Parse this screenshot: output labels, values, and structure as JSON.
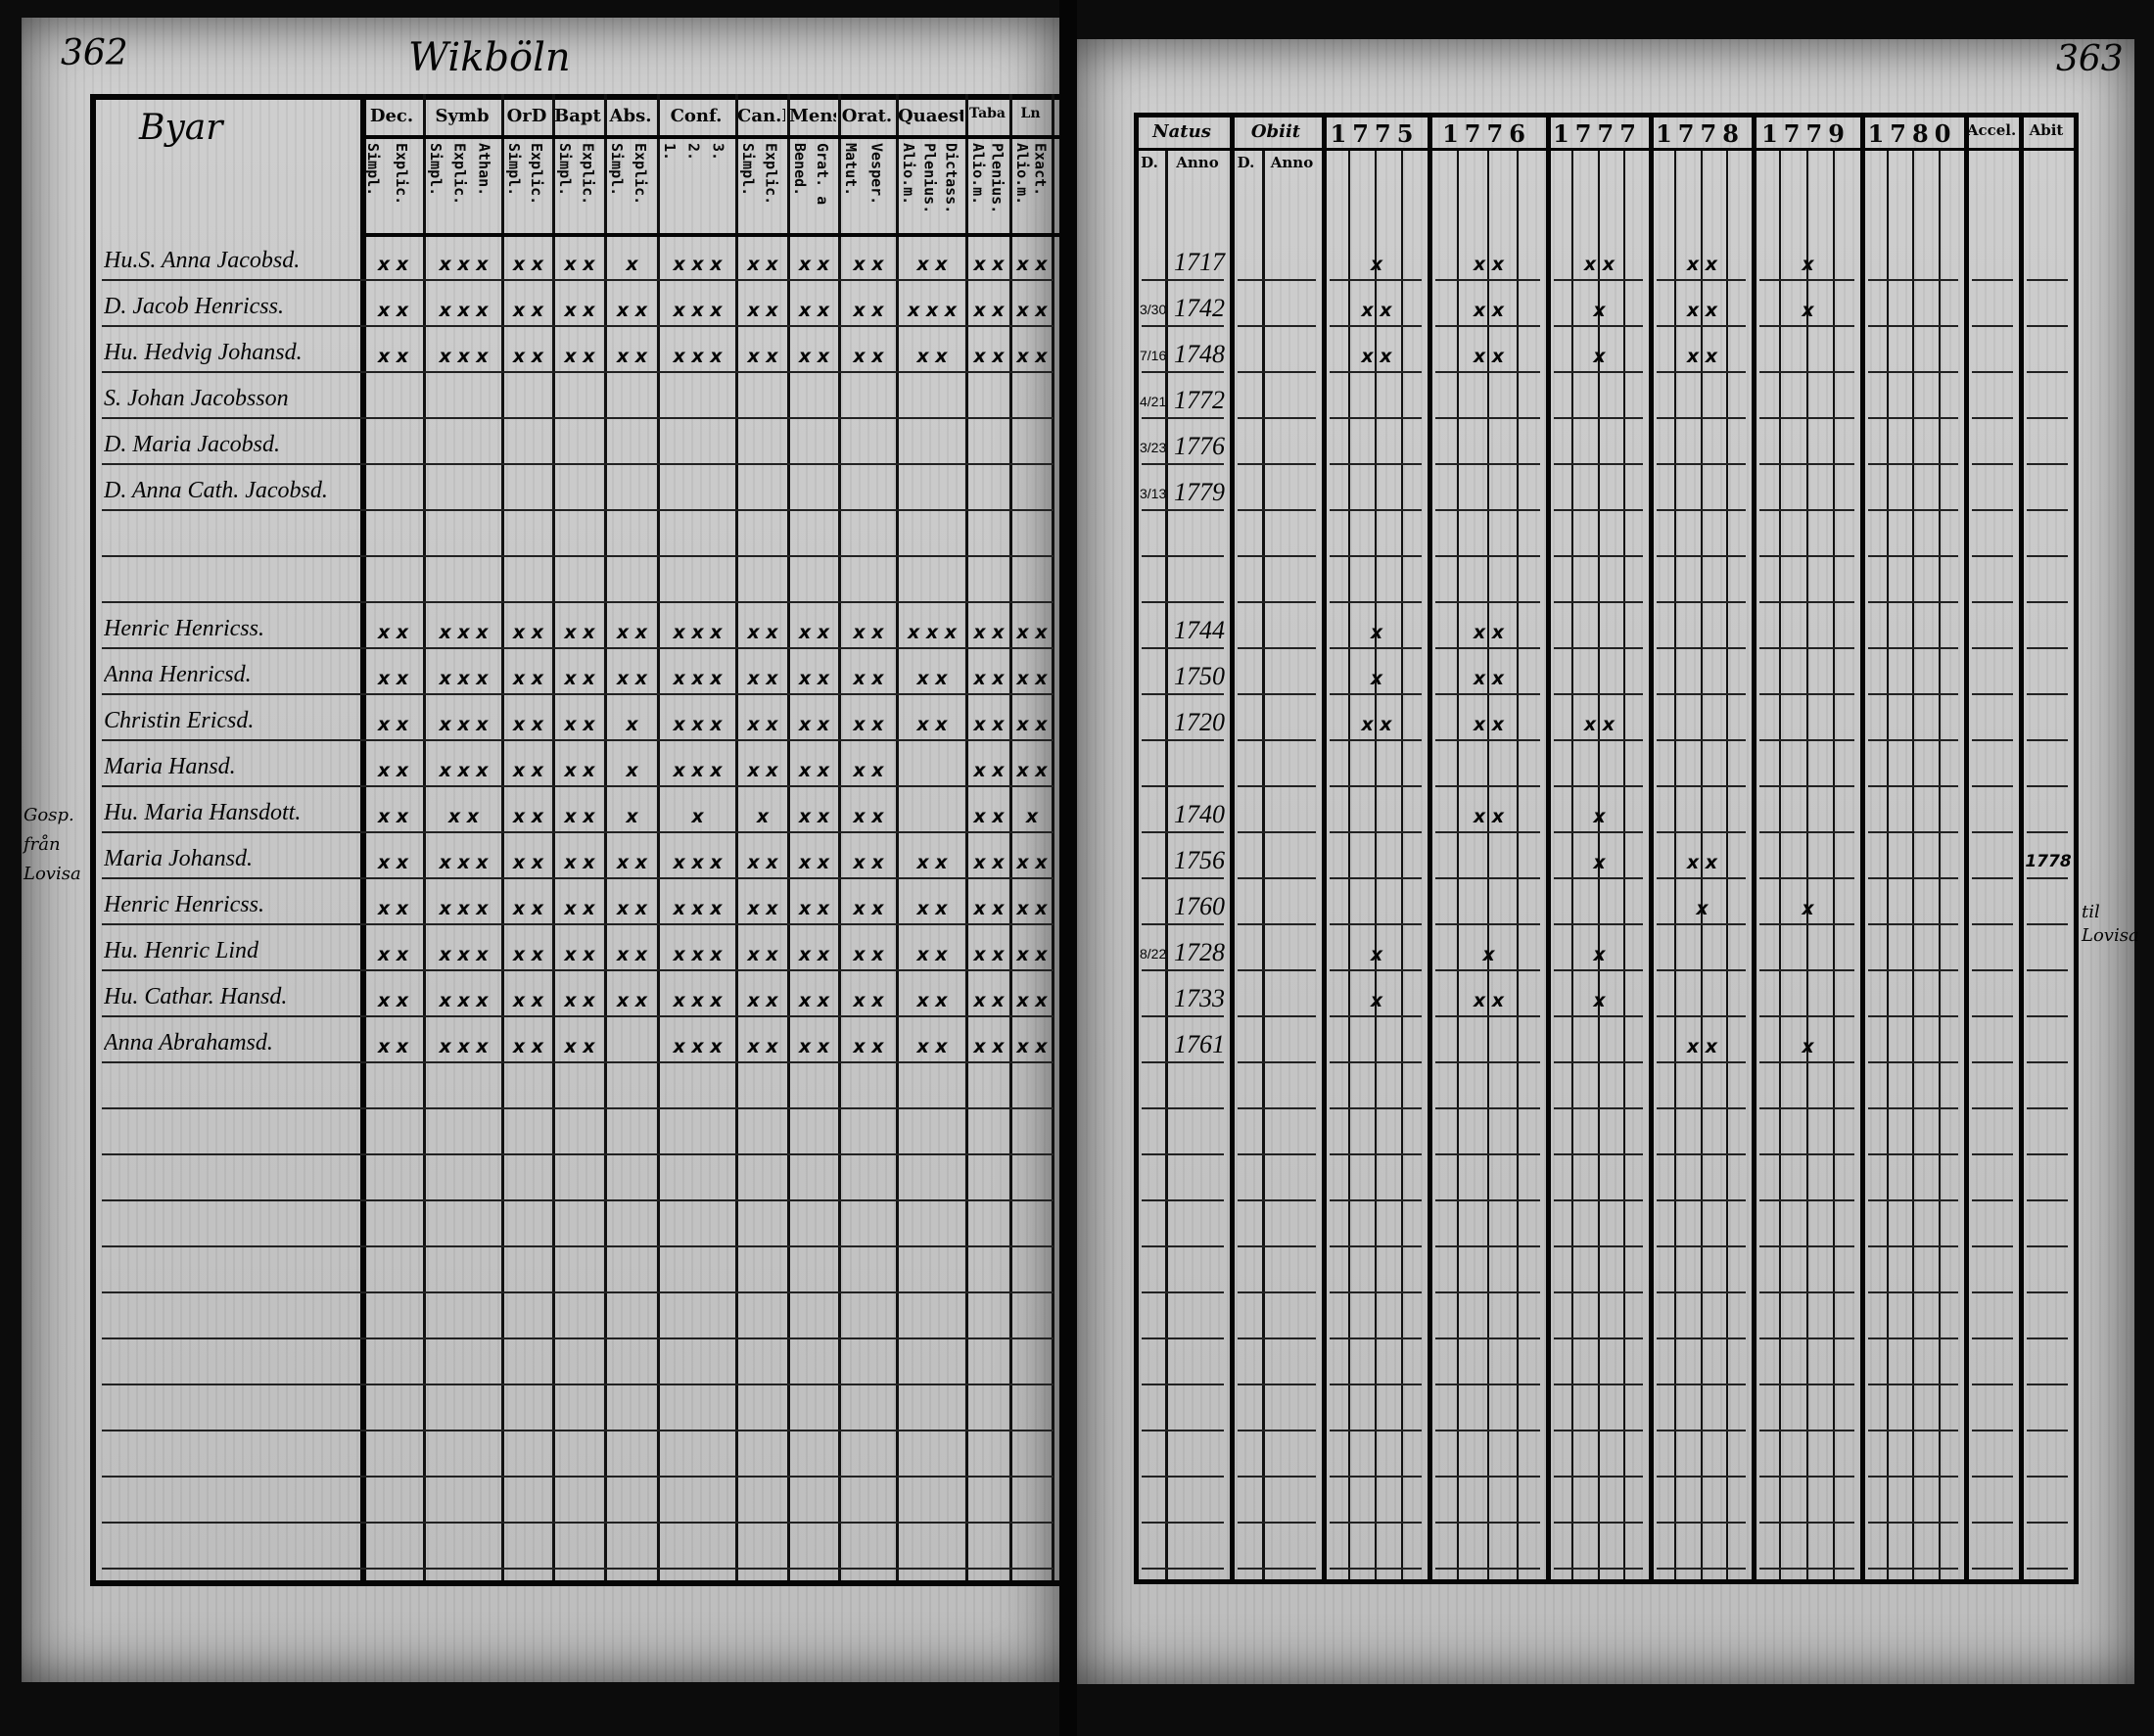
{
  "left_page": {
    "page_number": "362",
    "village_heading": "Wikböln",
    "name_column_heading": "Byar",
    "columns": [
      {
        "head": "Dec.",
        "sub": [
          "Explic.",
          "Simpl."
        ]
      },
      {
        "head": "Symb",
        "sub": [
          "Athan.",
          "Explic.",
          "Simpl."
        ]
      },
      {
        "head": "OrD",
        "sub": [
          "Explic.",
          "Simpl."
        ]
      },
      {
        "head": "Bapt.",
        "sub": [
          "Explic.",
          "Simpl."
        ]
      },
      {
        "head": "Abs.",
        "sub": [
          "Explic.",
          "Simpl."
        ]
      },
      {
        "head": "Conf.",
        "sub": [
          "3.",
          "2.",
          "1."
        ]
      },
      {
        "head": "Can.D",
        "sub": [
          "Explic.",
          "Simpl."
        ]
      },
      {
        "head": "Mens.",
        "sub": [
          "Grat. a",
          "Bened."
        ]
      },
      {
        "head": "Orat.",
        "sub": [
          "Vesper.",
          "Matut."
        ]
      },
      {
        "head": "Quaest.",
        "sub": [
          "Dictass.",
          "Plenius.",
          "Alio.m."
        ]
      },
      {
        "head": "Taba",
        "sub": [
          "Plenius.",
          "Alio.m."
        ]
      },
      {
        "head": "Ln",
        "sub": [
          "Exact.",
          "Alio.m."
        ]
      }
    ],
    "margin_note": "Gosp. från Lovisa",
    "rows": [
      {
        "name": "Hu.S. Anna Jacobsd.",
        "marks": [
          "x x",
          "x x x",
          "x x",
          "x x",
          "x",
          "x x x",
          "x x",
          "x x",
          "x x",
          "x x",
          "x x",
          "x x"
        ]
      },
      {
        "name": "D. Jacob Henricss.",
        "marks": [
          "x x",
          "x x x",
          "x x",
          "x x",
          "x x",
          "x x x",
          "x x",
          "x x",
          "x x",
          "x x x",
          "x x",
          "x x"
        ]
      },
      {
        "name": "Hu. Hedvig Johansd.",
        "marks": [
          "x x",
          "x x x",
          "x x",
          "x x",
          "x x",
          "x x x",
          "x x",
          "x x",
          "x x",
          "x x",
          "x x",
          "x x"
        ]
      },
      {
        "name": "S. Johan Jacobsson",
        "marks": []
      },
      {
        "name": "D. Maria Jacobsd.",
        "marks": []
      },
      {
        "name": "D. Anna Cath. Jacobsd.",
        "marks": []
      },
      {
        "name": "",
        "marks": []
      },
      {
        "name": "",
        "marks": []
      },
      {
        "name": "Henric Henricss.",
        "marks": [
          "x x",
          "x x x",
          "x x",
          "x x",
          "x x",
          "x x x",
          "x x",
          "x x",
          "x x",
          "x x x",
          "x x",
          "x x"
        ]
      },
      {
        "name": "Anna Henricsd.",
        "marks": [
          "x x",
          "x x x",
          "x x",
          "x x",
          "x x",
          "x x x",
          "x x",
          "x x",
          "x x",
          "x x",
          "x x",
          "x x"
        ]
      },
      {
        "name": "Christin Ericsd.",
        "marks": [
          "x x",
          "x x x",
          "x x",
          "x x",
          "x",
          "x x x",
          "x x",
          "x x",
          "x x",
          "x x",
          "x x",
          "x x"
        ]
      },
      {
        "name": "Maria Hansd.",
        "marks": [
          "x x",
          "x x x",
          "x x",
          "x x",
          "x",
          "x x x",
          "x x",
          "x x",
          "x x",
          "",
          "x x",
          "x x"
        ]
      },
      {
        "name": "Hu. Maria Hansdott.",
        "marks": [
          "x x",
          "x x",
          "x x",
          "x x",
          "x",
          "x",
          "x",
          "x x",
          "x x",
          "",
          "x x",
          "x"
        ]
      },
      {
        "name": "Maria Johansd.",
        "marks": [
          "x x",
          "x x x",
          "x x",
          "x x",
          "x x",
          "x x x",
          "x x",
          "x x",
          "x x",
          "x x",
          "x x",
          "x x"
        ]
      },
      {
        "name": "Henric Henricss.",
        "marks": [
          "x x",
          "x x x",
          "x x",
          "x x",
          "x x",
          "x x x",
          "x x",
          "x x",
          "x x",
          "x x",
          "x x",
          "x x"
        ]
      },
      {
        "name": "Hu. Henric Lind",
        "marks": [
          "x x",
          "x x x",
          "x x",
          "x x",
          "x x",
          "x x x",
          "x x",
          "x x",
          "x x",
          "x x",
          "x x",
          "x x"
        ]
      },
      {
        "name": "Hu. Cathar. Hansd.",
        "marks": [
          "x x",
          "x x x",
          "x x",
          "x x",
          "x x",
          "x x x",
          "x x",
          "x x",
          "x x",
          "x x",
          "x x",
          "x x"
        ]
      },
      {
        "name": "Anna Abrahamsd.",
        "marks": [
          "x x",
          "x x x",
          "x x",
          "x x",
          "",
          "x x x",
          "x x",
          "x x",
          "x x",
          "x x",
          "x x",
          "x x"
        ]
      }
    ],
    "total_rows": 29
  },
  "right_page": {
    "page_number": "363",
    "natus": {
      "head": "Natus",
      "sub": [
        "D.",
        "Anno"
      ]
    },
    "obiit": {
      "head": "Obiit",
      "sub": [
        "D.",
        "Anno"
      ]
    },
    "years": [
      "1775",
      "1776",
      "1777",
      "1778",
      "1779",
      "1780"
    ],
    "accessit": "Accel.",
    "abiit": "Abit",
    "margin_note": "til Lovisa",
    "rows": [
      {
        "day": "",
        "anno": "1717",
        "years": [
          "x",
          "x x",
          "x x",
          "x x",
          "x",
          "",
          ""
        ]
      },
      {
        "day": "3/30",
        "anno": "1742",
        "years": [
          "x x",
          "x x",
          "x",
          "x x",
          "x",
          "",
          ""
        ]
      },
      {
        "day": "7/16",
        "anno": "1748",
        "years": [
          "x x",
          "x x",
          "x",
          "x x",
          "",
          "",
          ""
        ]
      },
      {
        "day": "4/21",
        "anno": "1772",
        "years": [
          "",
          "",
          "",
          "",
          "",
          "",
          ""
        ]
      },
      {
        "day": "3/23",
        "anno": "1776",
        "years": [
          "",
          "",
          "",
          "",
          "",
          "",
          ""
        ]
      },
      {
        "day": "3/13",
        "anno": "1779",
        "years": [
          "",
          "",
          "",
          "",
          "",
          "",
          ""
        ]
      },
      {
        "day": "",
        "anno": "",
        "years": []
      },
      {
        "day": "",
        "anno": "",
        "years": []
      },
      {
        "day": "",
        "anno": "1744",
        "years": [
          "x",
          "x x",
          "",
          "",
          "",
          "",
          ""
        ]
      },
      {
        "day": "",
        "anno": "1750",
        "years": [
          "x",
          "x x",
          "",
          "",
          "",
          "",
          ""
        ]
      },
      {
        "day": "",
        "anno": "1720",
        "years": [
          "x x",
          "x x",
          "x x",
          "",
          "",
          "",
          ""
        ]
      },
      {
        "day": "",
        "anno": "",
        "years": []
      },
      {
        "day": "",
        "anno": "1740",
        "years": [
          "",
          "x x",
          "x",
          "",
          "",
          "",
          ""
        ]
      },
      {
        "day": "",
        "anno": "1756",
        "years": [
          "",
          "",
          "x",
          "x x",
          "",
          "",
          "1778"
        ]
      },
      {
        "day": "",
        "anno": "1760",
        "years": [
          "",
          "",
          "",
          "x",
          "x",
          "",
          ""
        ]
      },
      {
        "day": "8/22",
        "anno": "1728",
        "years": [
          "x",
          "x",
          "x",
          "",
          "",
          "",
          ""
        ]
      },
      {
        "day": "",
        "anno": "1733",
        "years": [
          "x",
          "x x",
          "x",
          "",
          "",
          "",
          ""
        ]
      },
      {
        "day": "",
        "anno": "1761",
        "years": [
          "",
          "",
          "",
          "x x",
          "x",
          "",
          ""
        ]
      }
    ]
  }
}
